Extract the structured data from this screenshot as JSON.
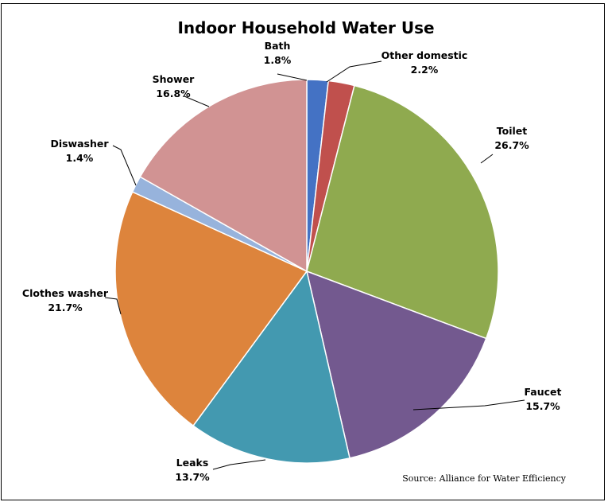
{
  "chart_data": {
    "type": "pie",
    "title": "Indoor Household Water Use",
    "source": "Source:  Alliance for Water Efficiency",
    "slices": [
      {
        "name": "Bath",
        "value": 1.8,
        "label": "1.8%",
        "color": "#4472c4"
      },
      {
        "name": "Other domestic",
        "value": 2.2,
        "label": "2.2%",
        "color": "#c0504d"
      },
      {
        "name": "Toilet",
        "value": 26.7,
        "label": "26.7%",
        "color": "#8faa4f"
      },
      {
        "name": "Faucet",
        "value": 15.7,
        "label": "15.7%",
        "color": "#73598f"
      },
      {
        "name": "Leaks",
        "value": 13.7,
        "label": "13.7%",
        "color": "#4399b0"
      },
      {
        "name": "Clothes washer",
        "value": 21.7,
        "label": "21.7%",
        "color": "#dd843c"
      },
      {
        "name": "Diswasher",
        "value": 1.4,
        "label": "1.4%",
        "color": "#97b3dc"
      },
      {
        "name": "Shower",
        "value": 16.8,
        "label": "16.8%",
        "color": "#d19393"
      }
    ]
  }
}
